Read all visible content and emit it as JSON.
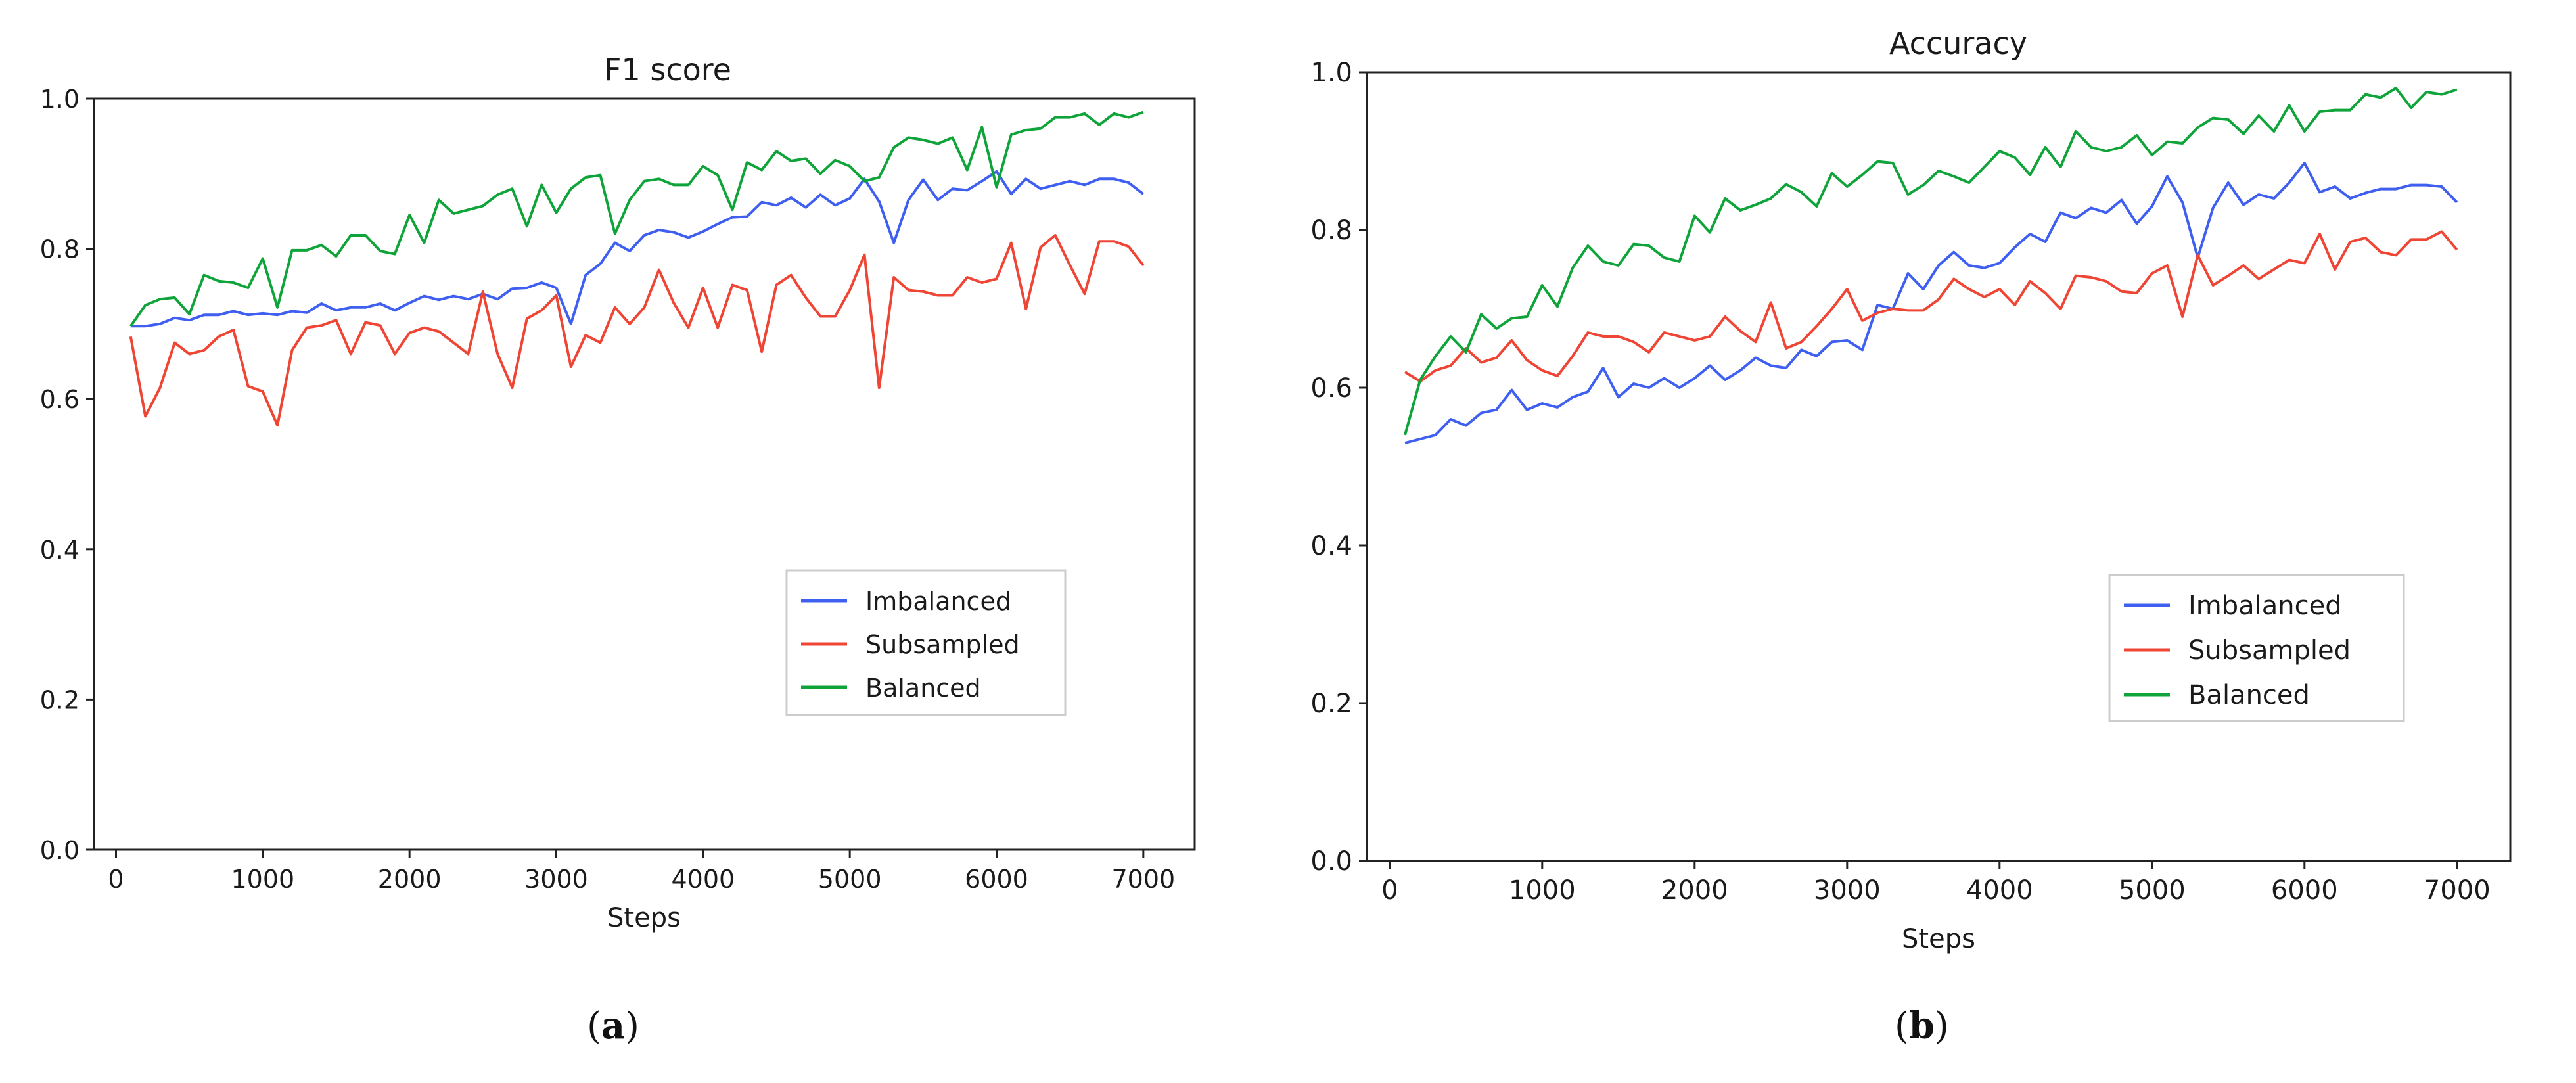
{
  "captions": {
    "a": "a",
    "b": "b"
  },
  "chart_data": [
    {
      "type": "line",
      "title": "F1 score",
      "xlabel": "Steps",
      "ylabel": "",
      "xlim": [
        -150,
        7350
      ],
      "ylim": [
        0.0,
        1.0
      ],
      "xticks": [
        "0",
        "1000",
        "2000",
        "3000",
        "4000",
        "5000",
        "6000",
        "7000"
      ],
      "yticks": [
        "0.0",
        "0.2",
        "0.4",
        "0.6",
        "0.8",
        "1.0"
      ],
      "grid": false,
      "legend_position": "lower-right",
      "x_start": 100,
      "x_step": 100,
      "series": [
        {
          "name": "Imbalanced",
          "color": "#3f5ff0",
          "values": [
            0.697,
            0.697,
            0.7,
            0.708,
            0.705,
            0.712,
            0.712,
            0.717,
            0.712,
            0.714,
            0.712,
            0.717,
            0.715,
            0.727,
            0.718,
            0.722,
            0.722,
            0.727,
            0.718,
            0.728,
            0.737,
            0.732,
            0.737,
            0.733,
            0.74,
            0.733,
            0.747,
            0.748,
            0.755,
            0.748,
            0.7,
            0.765,
            0.78,
            0.808,
            0.797,
            0.818,
            0.825,
            0.822,
            0.815,
            0.823,
            0.833,
            0.842,
            0.843,
            0.862,
            0.858,
            0.868,
            0.855,
            0.872,
            0.858,
            0.867,
            0.893,
            0.863,
            0.808,
            0.865,
            0.892,
            0.865,
            0.88,
            0.878,
            0.89,
            0.903,
            0.873,
            0.893,
            0.88,
            0.885,
            0.89,
            0.885,
            0.893,
            0.893,
            0.888,
            0.873
          ]
        },
        {
          "name": "Subsampled",
          "color": "#ef4535",
          "values": [
            0.683,
            0.577,
            0.615,
            0.675,
            0.66,
            0.665,
            0.683,
            0.692,
            0.617,
            0.61,
            0.565,
            0.665,
            0.695,
            0.698,
            0.705,
            0.66,
            0.702,
            0.698,
            0.66,
            0.688,
            0.695,
            0.69,
            0.675,
            0.66,
            0.743,
            0.66,
            0.615,
            0.707,
            0.718,
            0.738,
            0.643,
            0.685,
            0.675,
            0.722,
            0.7,
            0.722,
            0.772,
            0.728,
            0.695,
            0.748,
            0.695,
            0.752,
            0.745,
            0.663,
            0.752,
            0.765,
            0.735,
            0.71,
            0.71,
            0.745,
            0.792,
            0.615,
            0.762,
            0.745,
            0.743,
            0.738,
            0.738,
            0.762,
            0.755,
            0.76,
            0.808,
            0.72,
            0.802,
            0.818,
            0.778,
            0.74,
            0.81,
            0.81,
            0.803,
            0.778
          ]
        },
        {
          "name": "Balanced",
          "color": "#0fa43a",
          "values": [
            0.697,
            0.725,
            0.733,
            0.735,
            0.713,
            0.765,
            0.757,
            0.755,
            0.748,
            0.787,
            0.722,
            0.798,
            0.798,
            0.805,
            0.79,
            0.818,
            0.818,
            0.797,
            0.793,
            0.845,
            0.808,
            0.865,
            0.847,
            0.852,
            0.857,
            0.872,
            0.88,
            0.83,
            0.885,
            0.848,
            0.88,
            0.895,
            0.898,
            0.82,
            0.865,
            0.89,
            0.893,
            0.885,
            0.885,
            0.91,
            0.898,
            0.852,
            0.915,
            0.905,
            0.93,
            0.917,
            0.92,
            0.9,
            0.918,
            0.91,
            0.89,
            0.895,
            0.935,
            0.948,
            0.945,
            0.94,
            0.948,
            0.905,
            0.962,
            0.882,
            0.952,
            0.958,
            0.96,
            0.975,
            0.975,
            0.98,
            0.965,
            0.98,
            0.975,
            0.982
          ]
        }
      ]
    },
    {
      "type": "line",
      "title": "Accuracy",
      "xlabel": "Steps",
      "ylabel": "",
      "xlim": [
        -150,
        7350
      ],
      "ylim": [
        0.0,
        1.0
      ],
      "xticks": [
        "0",
        "1000",
        "2000",
        "3000",
        "4000",
        "5000",
        "6000",
        "7000"
      ],
      "yticks": [
        "0.0",
        "0.2",
        "0.4",
        "0.6",
        "0.8",
        "1.0"
      ],
      "grid": false,
      "legend_position": "lower-right",
      "x_start": 100,
      "x_step": 100,
      "series": [
        {
          "name": "Imbalanced",
          "color": "#3f5ff0",
          "values": [
            0.53,
            0.535,
            0.54,
            0.56,
            0.552,
            0.568,
            0.572,
            0.597,
            0.572,
            0.58,
            0.575,
            0.588,
            0.595,
            0.625,
            0.588,
            0.605,
            0.6,
            0.612,
            0.6,
            0.612,
            0.628,
            0.61,
            0.622,
            0.638,
            0.628,
            0.625,
            0.648,
            0.64,
            0.658,
            0.66,
            0.648,
            0.705,
            0.7,
            0.745,
            0.725,
            0.755,
            0.772,
            0.755,
            0.752,
            0.758,
            0.778,
            0.795,
            0.785,
            0.822,
            0.815,
            0.828,
            0.822,
            0.838,
            0.808,
            0.83,
            0.868,
            0.835,
            0.765,
            0.828,
            0.86,
            0.832,
            0.845,
            0.84,
            0.86,
            0.885,
            0.848,
            0.855,
            0.84,
            0.847,
            0.852,
            0.852,
            0.857,
            0.857,
            0.855,
            0.835
          ]
        },
        {
          "name": "Subsampled",
          "color": "#ef4535",
          "values": [
            0.62,
            0.608,
            0.622,
            0.628,
            0.65,
            0.632,
            0.638,
            0.66,
            0.635,
            0.622,
            0.615,
            0.64,
            0.67,
            0.665,
            0.665,
            0.658,
            0.645,
            0.67,
            0.665,
            0.66,
            0.665,
            0.69,
            0.672,
            0.658,
            0.708,
            0.65,
            0.658,
            0.678,
            0.7,
            0.725,
            0.685,
            0.695,
            0.7,
            0.698,
            0.698,
            0.712,
            0.738,
            0.725,
            0.715,
            0.725,
            0.705,
            0.735,
            0.72,
            0.7,
            0.742,
            0.74,
            0.735,
            0.722,
            0.72,
            0.745,
            0.755,
            0.69,
            0.768,
            0.73,
            0.742,
            0.755,
            0.738,
            0.75,
            0.762,
            0.758,
            0.795,
            0.75,
            0.785,
            0.79,
            0.772,
            0.768,
            0.788,
            0.788,
            0.798,
            0.775
          ]
        },
        {
          "name": "Balanced",
          "color": "#0fa43a",
          "values": [
            0.54,
            0.61,
            0.64,
            0.665,
            0.645,
            0.693,
            0.675,
            0.688,
            0.69,
            0.73,
            0.703,
            0.752,
            0.78,
            0.76,
            0.755,
            0.782,
            0.78,
            0.765,
            0.76,
            0.818,
            0.797,
            0.84,
            0.825,
            0.832,
            0.84,
            0.858,
            0.848,
            0.83,
            0.872,
            0.855,
            0.87,
            0.887,
            0.885,
            0.845,
            0.857,
            0.875,
            0.868,
            0.86,
            0.88,
            0.9,
            0.892,
            0.87,
            0.905,
            0.88,
            0.925,
            0.905,
            0.9,
            0.905,
            0.92,
            0.895,
            0.912,
            0.91,
            0.93,
            0.942,
            0.94,
            0.922,
            0.945,
            0.925,
            0.958,
            0.925,
            0.95,
            0.952,
            0.952,
            0.972,
            0.968,
            0.98,
            0.955,
            0.975,
            0.972,
            0.978
          ]
        }
      ]
    }
  ]
}
